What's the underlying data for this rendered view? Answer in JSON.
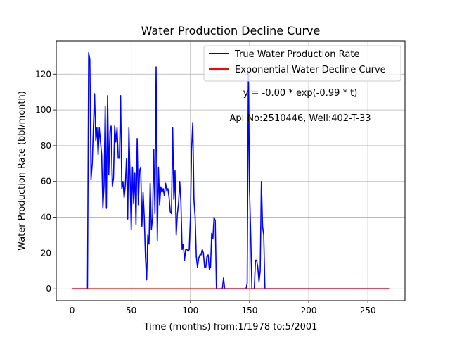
{
  "chart_data": {
    "type": "line",
    "title": "Water Production Decline Curve",
    "xlabel": "Time (months) from:1/1978 to:5/2001",
    "ylabel": "Water Production Rate (bbl/month)",
    "xlim": [
      -13.4,
      281.4
    ],
    "ylim": [
      -6.6,
      138.6
    ],
    "xticks": [
      0,
      50,
      100,
      150,
      200,
      250
    ],
    "yticks": [
      0,
      20,
      40,
      60,
      80,
      100,
      120
    ],
    "grid": true,
    "legend_position": "top-right",
    "annotations": [
      "y = -0.00 * exp(-0.99 * t)",
      "Api No:2510446, Well:402-T-33"
    ],
    "series": [
      {
        "name": "True Water Production Rate",
        "color": "#0000ff",
        "points": [
          [
            0,
            0
          ],
          [
            12,
            0
          ],
          [
            13,
            0
          ],
          [
            14,
            132
          ],
          [
            15,
            128
          ],
          [
            16,
            61
          ],
          [
            17,
            70
          ],
          [
            18,
            91
          ],
          [
            19,
            109
          ],
          [
            20,
            83
          ],
          [
            21,
            90
          ],
          [
            22,
            75
          ],
          [
            23,
            90
          ],
          [
            24,
            82
          ],
          [
            25,
            75
          ],
          [
            26,
            45
          ],
          [
            27,
            58
          ],
          [
            28,
            102
          ],
          [
            29,
            45
          ],
          [
            30,
            108
          ],
          [
            31,
            64
          ],
          [
            32,
            88
          ],
          [
            33,
            91
          ],
          [
            34,
            57
          ],
          [
            35,
            62
          ],
          [
            36,
            91
          ],
          [
            37,
            82
          ],
          [
            38,
            90
          ],
          [
            39,
            73
          ],
          [
            40,
            73
          ],
          [
            41,
            108
          ],
          [
            42,
            56
          ],
          [
            43,
            60
          ],
          [
            44,
            51
          ],
          [
            45,
            58
          ],
          [
            46,
            73
          ],
          [
            47,
            39
          ],
          [
            48,
            90
          ],
          [
            49,
            62
          ],
          [
            50,
            33
          ],
          [
            51,
            68
          ],
          [
            52,
            48
          ],
          [
            53,
            65
          ],
          [
            54,
            36
          ],
          [
            55,
            84
          ],
          [
            56,
            47
          ],
          [
            57,
            66
          ],
          [
            58,
            68
          ],
          [
            59,
            35
          ],
          [
            60,
            54
          ],
          [
            61,
            40
          ],
          [
            62,
            18
          ],
          [
            63,
            5
          ],
          [
            64,
            30
          ],
          [
            65,
            25
          ],
          [
            66,
            59
          ],
          [
            67,
            33
          ],
          [
            68,
            40
          ],
          [
            69,
            78
          ],
          [
            70,
            42
          ],
          [
            71,
            124
          ],
          [
            72,
            27
          ],
          [
            73,
            68
          ],
          [
            74,
            47
          ],
          [
            75,
            57
          ],
          [
            76,
            54
          ],
          [
            77,
            56
          ],
          [
            78,
            52
          ],
          [
            79,
            59
          ],
          [
            80,
            55
          ],
          [
            81,
            56
          ],
          [
            82,
            51
          ],
          [
            83,
            43
          ],
          [
            84,
            42
          ],
          [
            85,
            90
          ],
          [
            86,
            50
          ],
          [
            87,
            66
          ],
          [
            88,
            30
          ],
          [
            89,
            42
          ],
          [
            90,
            48
          ],
          [
            91,
            60
          ],
          [
            92,
            48
          ],
          [
            93,
            22
          ],
          [
            94,
            25
          ],
          [
            95,
            16
          ],
          [
            96,
            22
          ],
          [
            97,
            22
          ],
          [
            98,
            21
          ],
          [
            99,
            22
          ],
          [
            100,
            40
          ],
          [
            101,
            78
          ],
          [
            102,
            93
          ],
          [
            103,
            50
          ],
          [
            104,
            40
          ],
          [
            105,
            18
          ],
          [
            106,
            12
          ],
          [
            107,
            17
          ],
          [
            108,
            19
          ],
          [
            109,
            19
          ],
          [
            110,
            22
          ],
          [
            111,
            20
          ],
          [
            112,
            12
          ],
          [
            113,
            12
          ],
          [
            114,
            18
          ],
          [
            115,
            19
          ],
          [
            116,
            11
          ],
          [
            117,
            12
          ],
          [
            118,
            31
          ],
          [
            119,
            28
          ],
          [
            120,
            40
          ],
          [
            121,
            38
          ],
          [
            122,
            0
          ],
          [
            123,
            0
          ],
          [
            124,
            0
          ],
          [
            125,
            0
          ],
          [
            126,
            0
          ],
          [
            127,
            0
          ],
          [
            128,
            6
          ],
          [
            129,
            0
          ],
          [
            130,
            0
          ],
          [
            145,
            0
          ],
          [
            147,
            0
          ],
          [
            148,
            3
          ],
          [
            149,
            120
          ],
          [
            150,
            55
          ],
          [
            151,
            30
          ],
          [
            152,
            0
          ],
          [
            153,
            0
          ],
          [
            154,
            0
          ],
          [
            155,
            16
          ],
          [
            156,
            16
          ],
          [
            157,
            12
          ],
          [
            158,
            4
          ],
          [
            159,
            10
          ],
          [
            160,
            60
          ],
          [
            161,
            35
          ],
          [
            162,
            30
          ],
          [
            163,
            0
          ],
          [
            165,
            0
          ],
          [
            268,
            0
          ]
        ]
      },
      {
        "name": "Exponential Water Decline Curve",
        "color": "#ff0000",
        "points": [
          [
            0,
            0
          ],
          [
            268,
            0
          ]
        ]
      }
    ]
  }
}
